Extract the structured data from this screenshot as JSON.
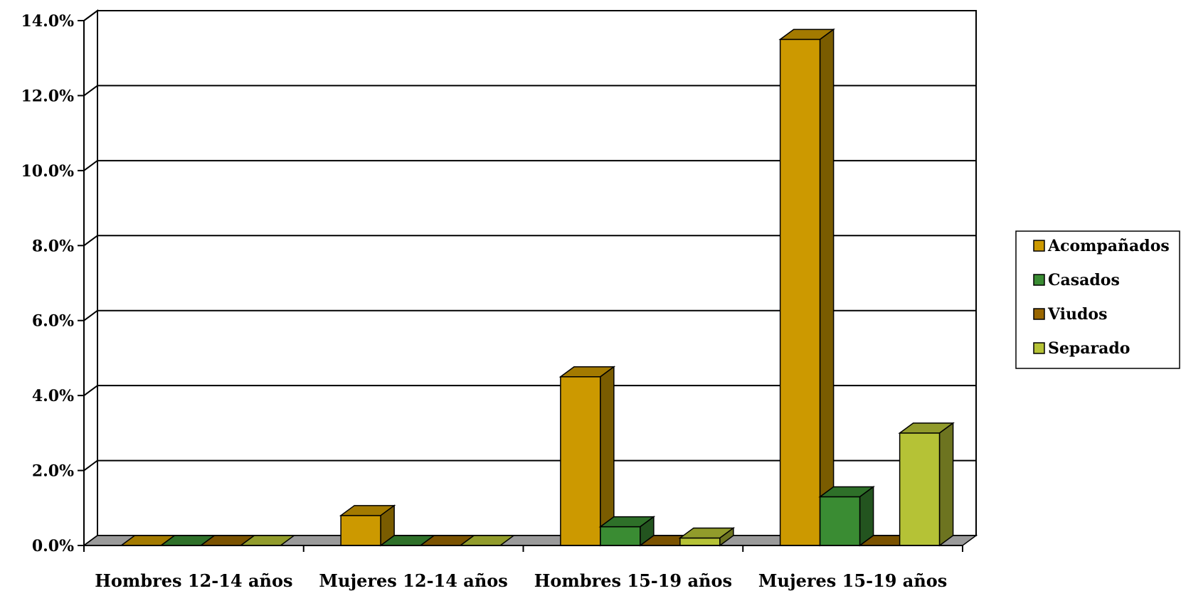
{
  "chart_data": {
    "type": "bar",
    "title": "",
    "xlabel": "",
    "ylabel": "",
    "ylim": [
      0,
      14
    ],
    "y_ticks": [
      "0.0%",
      "2.0%",
      "4.0%",
      "6.0%",
      "8.0%",
      "10.0%",
      "12.0%",
      "14.0%"
    ],
    "y_tick_values": [
      0,
      2,
      4,
      6,
      8,
      10,
      12,
      14
    ],
    "grid": true,
    "legend_position": "right",
    "categories": [
      "Hombres 12-14 años",
      "Mujeres 12-14 años",
      "Hombres 15-19 años",
      "Mujeres 15-19 años"
    ],
    "series": [
      {
        "name": "Acompañados",
        "values": [
          0.0,
          0.8,
          4.5,
          13.5
        ],
        "color": "#CC9900"
      },
      {
        "name": "Casados",
        "values": [
          0.0,
          0.0,
          0.5,
          1.3
        ],
        "color": "#3A8C33"
      },
      {
        "name": "Viudos",
        "values": [
          0.0,
          0.0,
          0.0,
          0.0
        ],
        "color": "#996600"
      },
      {
        "name": "Separado",
        "values": [
          0.0,
          0.0,
          0.2,
          3.0
        ],
        "color": "#B5C236"
      }
    ]
  }
}
